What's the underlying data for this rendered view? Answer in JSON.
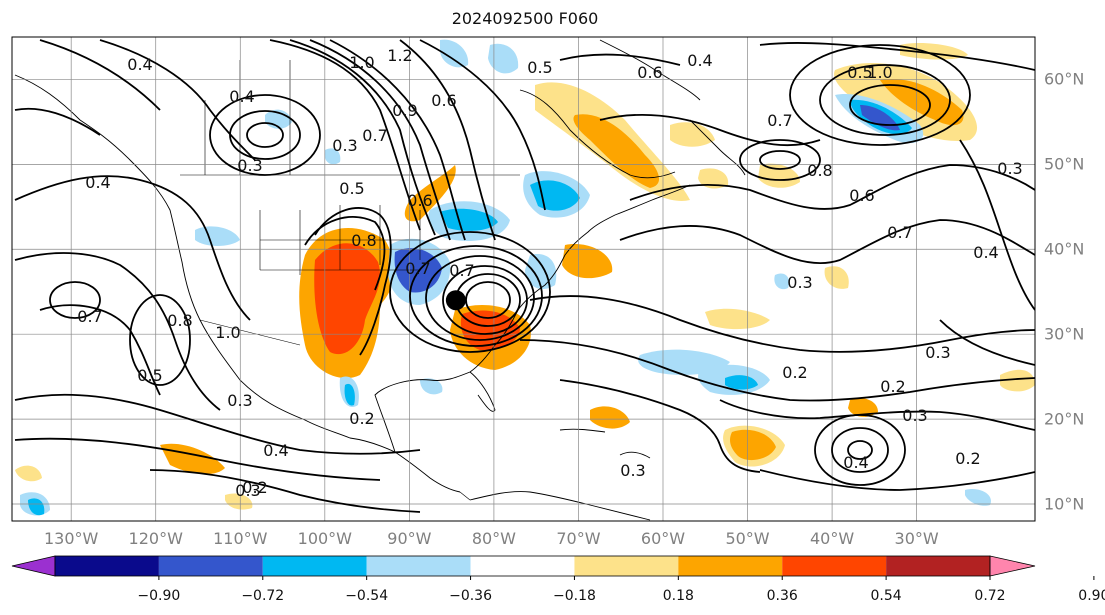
{
  "title": "2024092500 F060",
  "map": {
    "projection": "plate-carree",
    "region": "North America and North Atlantic",
    "lon_range": [
      -137,
      -16
    ],
    "lat_range": [
      8,
      65
    ],
    "lon_ticks": [
      "130°W",
      "120°W",
      "110°W",
      "100°W",
      "90°W",
      "80°W",
      "70°W",
      "60°W",
      "50°W",
      "40°W",
      "30°W"
    ],
    "lat_ticks": [
      "60°N",
      "50°N",
      "40°N",
      "30°N",
      "20°N",
      "10°N"
    ],
    "contour_labels": [
      "0.4",
      "0.4",
      "1.0",
      "1.2",
      "0.5",
      "0.6",
      "0.7",
      "0.9",
      "0.3",
      "0.3",
      "0.8",
      "0.7",
      "0.5",
      "0.6",
      "0.7",
      "0.4",
      "0.7",
      "0.8",
      "0.5",
      "1.0",
      "0.3",
      "0.2",
      "0.2",
      "0.3",
      "0.4",
      "0.2",
      "0.3",
      "0.6",
      "0.7",
      "0.8",
      "0.6",
      "0.7",
      "0.4",
      "0.3",
      "0.3",
      "0.2",
      "0.3",
      "0.4",
      "0.4",
      "0.2",
      "0.3",
      "0.5",
      "1.0"
    ],
    "marker": {
      "name": "storm-center",
      "lon": -84.5,
      "lat": 34
    }
  },
  "colorbar": {
    "colors": [
      "#9b30d0",
      "#0a0a8c",
      "#3456cc",
      "#00b8f2",
      "#aaddf8",
      "#ffffff",
      "#fde28a",
      "#fda500",
      "#ff4500",
      "#b22222",
      "#ff85ad"
    ],
    "tick_labels": [
      "−0.90",
      "−0.72",
      "−0.54",
      "−0.36",
      "−0.18",
      "0.18",
      "0.36",
      "0.54",
      "0.72",
      "0.90"
    ],
    "extend": "both"
  }
}
